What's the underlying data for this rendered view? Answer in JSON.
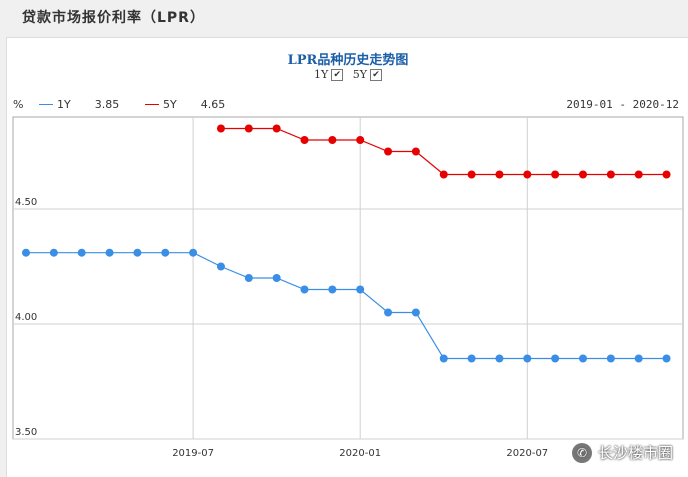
{
  "header": {
    "title": "贷款市场报价利率（LPR）"
  },
  "watermark": {
    "text": "长沙楼市圈",
    "icon": "wechat-icon"
  },
  "chart_data": {
    "type": "line",
    "title": "LPR品种历史走势图",
    "toggles": [
      {
        "label": "1Y",
        "checked": true
      },
      {
        "label": "5Y",
        "checked": true
      }
    ],
    "unit": "%",
    "range_label": "2019-01 - 2020-12",
    "x": [
      "2019-01",
      "2019-02",
      "2019-03",
      "2019-04",
      "2019-05",
      "2019-06",
      "2019-07",
      "2019-08",
      "2019-09",
      "2019-10",
      "2019-11",
      "2019-12",
      "2020-01",
      "2020-02",
      "2020-03",
      "2020-04",
      "2020-05",
      "2020-06",
      "2020-07",
      "2020-08",
      "2020-09",
      "2020-10",
      "2020-11",
      "2020-12"
    ],
    "x_tick_labels": [
      "2019-07",
      "2020-01",
      "2020-07"
    ],
    "ylim": [
      3.5,
      4.9
    ],
    "y_ticks": [
      "3.50",
      "4.00",
      "4.50"
    ],
    "grid": true,
    "series": [
      {
        "name": "1Y",
        "latest": "3.85",
        "color": "#3a8ee6",
        "values": [
          4.31,
          4.31,
          4.31,
          4.31,
          4.31,
          4.31,
          4.31,
          4.25,
          4.2,
          4.2,
          4.15,
          4.15,
          4.15,
          4.05,
          4.05,
          3.85,
          3.85,
          3.85,
          3.85,
          3.85,
          3.85,
          3.85,
          3.85,
          3.85
        ]
      },
      {
        "name": "5Y",
        "latest": "4.65",
        "color": "#e60000",
        "values": [
          null,
          null,
          null,
          null,
          null,
          null,
          null,
          4.85,
          4.85,
          4.85,
          4.8,
          4.8,
          4.8,
          4.75,
          4.75,
          4.65,
          4.65,
          4.65,
          4.65,
          4.65,
          4.65,
          4.65,
          4.65,
          4.65
        ]
      }
    ]
  }
}
